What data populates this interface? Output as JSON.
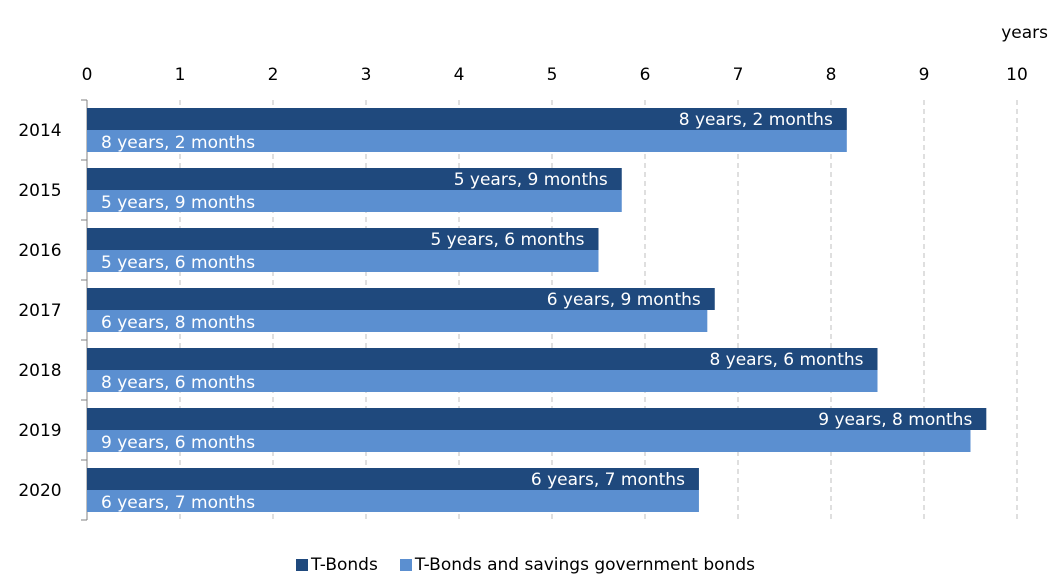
{
  "chart_data": {
    "type": "bar",
    "orientation": "horizontal",
    "unit_label": "years",
    "categories": [
      "2014",
      "2015",
      "2016",
      "2017",
      "2018",
      "2019",
      "2020"
    ],
    "xlim": [
      0,
      10
    ],
    "x_ticks": [
      "0",
      "1",
      "2",
      "3",
      "4",
      "5",
      "6",
      "7",
      "8",
      "9",
      "10"
    ],
    "grid": "vertical dashed",
    "legend_position": "bottom",
    "series": [
      {
        "name": "T-Bonds",
        "color": "#1f497d",
        "values": [
          8.17,
          5.75,
          5.5,
          6.75,
          8.5,
          9.67,
          6.58
        ],
        "labels": [
          "8 years, 2 months",
          "5 years, 9 months",
          "5 years, 6 months",
          "6 years, 9 months",
          "8 years, 6 months",
          "9 years, 8 months",
          "6 years, 7 months"
        ]
      },
      {
        "name": "T-Bonds and savings government bonds",
        "color": "#5b8fd0",
        "values": [
          8.17,
          5.75,
          5.5,
          6.67,
          8.5,
          9.5,
          6.58
        ],
        "labels": [
          "8 years, 2 months",
          "5 years, 9 months",
          "5 years, 6 months",
          "6 years, 8 months",
          "8 years, 6 months",
          "9 years, 6 months",
          "6 years, 7 months"
        ]
      }
    ]
  }
}
